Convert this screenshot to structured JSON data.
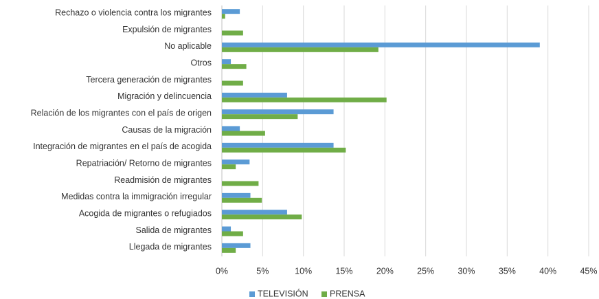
{
  "chart_data": {
    "type": "bar",
    "orientation": "horizontal",
    "categories": [
      "Rechazo o violencia contra los migrantes",
      "Expulsión de migrantes",
      "No aplicable",
      "Otros",
      "Tercera generación de migrantes",
      "Migración y delincuencia",
      "Relación de los migrantes con el país de origen",
      "Causas de la migración",
      "Integración de migrantes en el país de acogida",
      "Repatriación/ Retorno de migrantes",
      "Readmisión de migrantes",
      "Medidas contra la immigración irregular",
      "Acogida de migrantes o refugiados",
      "Salida de migrantes",
      "Llegada de migrantes"
    ],
    "series": [
      {
        "name": "TELEVISIÓN",
        "color": "#5b9bd5",
        "values": [
          2.2,
          0,
          39,
          1.1,
          0,
          8.0,
          13.7,
          2.2,
          13.7,
          3.4,
          0,
          3.5,
          8.0,
          1.1,
          3.5
        ]
      },
      {
        "name": "PRENSA",
        "color": "#70ad47",
        "values": [
          0.4,
          2.6,
          19.2,
          3.0,
          2.6,
          20.2,
          9.3,
          5.3,
          15.2,
          1.7,
          4.5,
          4.9,
          9.8,
          2.6,
          1.7
        ]
      }
    ],
    "xlim": [
      0,
      45
    ],
    "xticks": [
      {
        "value": 0,
        "label": "0%"
      },
      {
        "value": 5,
        "label": "5%"
      },
      {
        "value": 10,
        "label": "10%"
      },
      {
        "value": 15,
        "label": "15%"
      },
      {
        "value": 20,
        "label": "20%"
      },
      {
        "value": 25,
        "label": "25%"
      },
      {
        "value": 30,
        "label": "30%"
      },
      {
        "value": 35,
        "label": "35%"
      },
      {
        "value": 40,
        "label": "40%"
      },
      {
        "value": 45,
        "label": "45%"
      }
    ],
    "grid": true,
    "legend": "bottom"
  }
}
